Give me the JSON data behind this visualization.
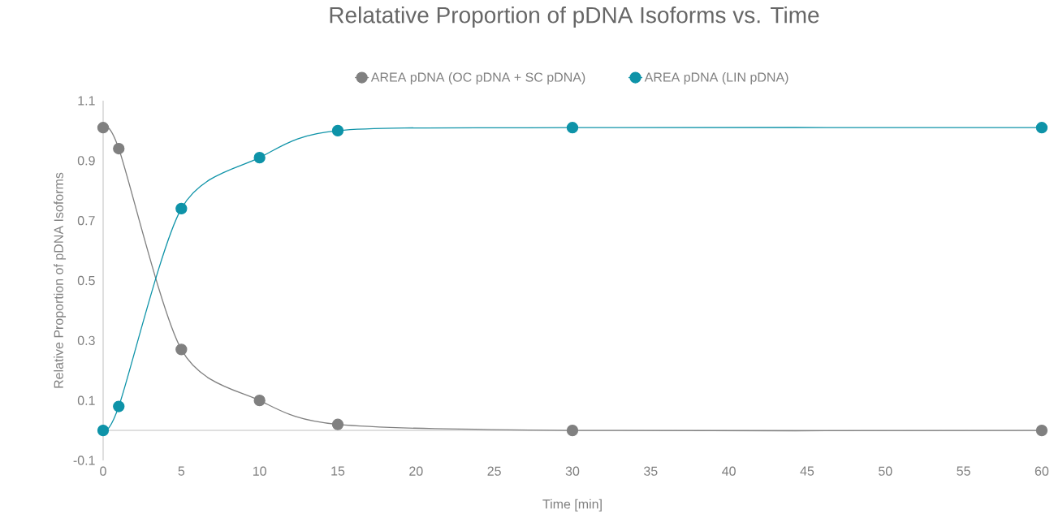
{
  "chart_data": {
    "type": "line",
    "title": "Relatative Proportion of pDNA Isoforms vs. Time",
    "xlabel": "Time [min]",
    "ylabel": "Relative Proportion of pDNA Isoforms",
    "x": [
      0,
      1,
      5,
      10,
      15,
      30,
      60
    ],
    "series": [
      {
        "name": "AREA pDNA (OC pDNA + SC pDNA)",
        "color": "#808080",
        "values": [
          1.01,
          0.94,
          0.27,
          0.1,
          0.02,
          0,
          0
        ]
      },
      {
        "name": "AREA pDNA (LIN pDNA)",
        "color": "#0e93a8",
        "values": [
          0,
          0.08,
          0.74,
          0.91,
          1.0,
          1.01,
          1.01
        ]
      }
    ],
    "xlim": [
      0,
      60
    ],
    "xticks": [
      0,
      5,
      10,
      15,
      20,
      25,
      30,
      35,
      40,
      45,
      50,
      55,
      60
    ],
    "ylim": [
      -0.1,
      1.1
    ],
    "yticks": [
      -0.1,
      0.1,
      0.3,
      0.5,
      0.7,
      0.9,
      1.1
    ],
    "legend": "top",
    "marker": "circle",
    "line_style": "solid"
  }
}
